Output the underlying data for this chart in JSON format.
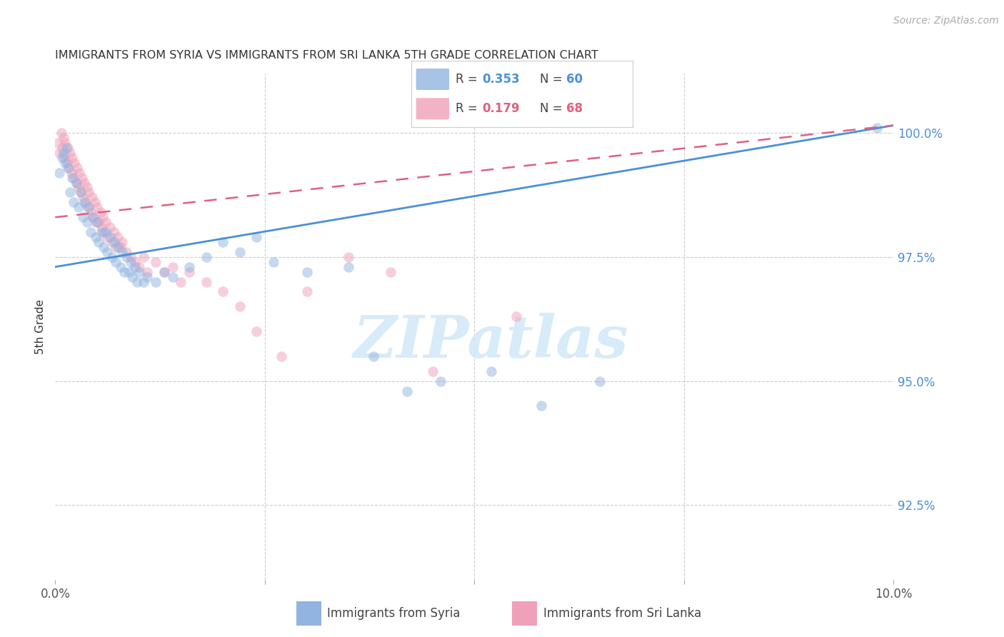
{
  "title": "IMMIGRANTS FROM SYRIA VS IMMIGRANTS FROM SRI LANKA 5TH GRADE CORRELATION CHART",
  "source": "Source: ZipAtlas.com",
  "ylabel": "5th Grade",
  "ytick_labels": [
    "92.5%",
    "95.0%",
    "97.5%",
    "100.0%"
  ],
  "ytick_vals": [
    92.5,
    95.0,
    97.5,
    100.0
  ],
  "xlim": [
    0.0,
    10.0
  ],
  "ylim": [
    91.0,
    101.2
  ],
  "syria_color": "#91b4e0",
  "sri_lanka_color": "#f0a0b8",
  "syria_line_color": "#4a90d9",
  "sri_lanka_line_color": "#e06080",
  "right_axis_color": "#4a90d9",
  "background_color": "#ffffff",
  "grid_color": "#cccccc",
  "title_color": "#333333",
  "marker_size": 110,
  "marker_alpha": 0.5,
  "syria_N": 60,
  "sri_lanka_N": 68,
  "syria_R": "0.353",
  "sri_lanka_R": "0.179",
  "syria_scatter_x": [
    0.05,
    0.08,
    0.1,
    0.12,
    0.13,
    0.15,
    0.18,
    0.2,
    0.22,
    0.25,
    0.28,
    0.3,
    0.33,
    0.35,
    0.38,
    0.4,
    0.42,
    0.45,
    0.48,
    0.5,
    0.52,
    0.55,
    0.58,
    0.6,
    0.62,
    0.65,
    0.68,
    0.7,
    0.72,
    0.75,
    0.78,
    0.8,
    0.82,
    0.85,
    0.88,
    0.9,
    0.92,
    0.95,
    0.98,
    1.0,
    1.05,
    1.1,
    1.2,
    1.3,
    1.4,
    1.6,
    1.8,
    2.0,
    2.2,
    2.4,
    2.6,
    3.0,
    3.5,
    3.8,
    4.2,
    4.6,
    5.2,
    5.8,
    6.5,
    9.8
  ],
  "syria_scatter_y": [
    99.2,
    99.5,
    99.6,
    99.4,
    99.7,
    99.3,
    98.8,
    99.1,
    98.6,
    99.0,
    98.5,
    98.8,
    98.3,
    98.6,
    98.2,
    98.5,
    98.0,
    98.3,
    97.9,
    98.2,
    97.8,
    98.0,
    97.7,
    98.0,
    97.6,
    97.9,
    97.5,
    97.8,
    97.4,
    97.7,
    97.3,
    97.6,
    97.2,
    97.5,
    97.2,
    97.4,
    97.1,
    97.3,
    97.0,
    97.2,
    97.0,
    97.1,
    97.0,
    97.2,
    97.1,
    97.3,
    97.5,
    97.8,
    97.6,
    97.9,
    97.4,
    97.2,
    97.3,
    95.5,
    94.8,
    95.0,
    95.2,
    94.5,
    95.0,
    100.1
  ],
  "sri_lanka_scatter_x": [
    0.03,
    0.05,
    0.07,
    0.08,
    0.1,
    0.11,
    0.12,
    0.14,
    0.15,
    0.16,
    0.18,
    0.19,
    0.2,
    0.22,
    0.23,
    0.25,
    0.26,
    0.28,
    0.29,
    0.3,
    0.32,
    0.33,
    0.35,
    0.36,
    0.38,
    0.39,
    0.4,
    0.42,
    0.44,
    0.45,
    0.47,
    0.48,
    0.5,
    0.52,
    0.54,
    0.55,
    0.57,
    0.58,
    0.6,
    0.62,
    0.65,
    0.68,
    0.7,
    0.72,
    0.75,
    0.78,
    0.8,
    0.85,
    0.9,
    0.95,
    1.0,
    1.05,
    1.1,
    1.2,
    1.3,
    1.4,
    1.5,
    1.6,
    1.8,
    2.0,
    2.2,
    2.4,
    2.7,
    3.0,
    3.5,
    4.0,
    4.5,
    5.5
  ],
  "sri_lanka_scatter_y": [
    99.8,
    99.6,
    100.0,
    99.7,
    99.9,
    99.5,
    99.8,
    99.4,
    99.7,
    99.3,
    99.6,
    99.2,
    99.5,
    99.1,
    99.4,
    99.0,
    99.3,
    98.9,
    99.2,
    98.8,
    99.1,
    98.7,
    99.0,
    98.6,
    98.9,
    98.5,
    98.8,
    98.4,
    98.7,
    98.3,
    98.6,
    98.2,
    98.5,
    98.2,
    98.4,
    98.1,
    98.3,
    98.0,
    98.2,
    97.9,
    98.1,
    97.8,
    98.0,
    97.7,
    97.9,
    97.7,
    97.8,
    97.6,
    97.5,
    97.4,
    97.3,
    97.5,
    97.2,
    97.4,
    97.2,
    97.3,
    97.0,
    97.2,
    97.0,
    96.8,
    96.5,
    96.0,
    95.5,
    96.8,
    97.5,
    97.2,
    95.2,
    96.3
  ],
  "watermark_text": "ZIPatlas",
  "watermark_color": "#d0e8f8"
}
